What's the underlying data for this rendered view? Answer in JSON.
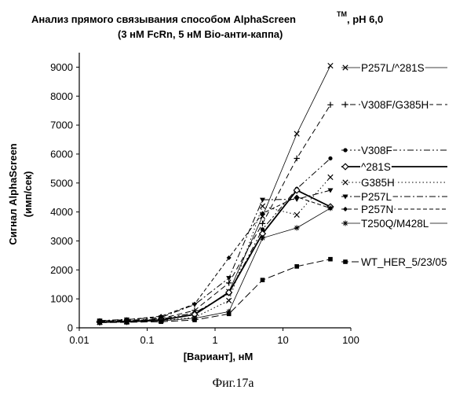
{
  "title": {
    "line1": "Анализ прямого связывания  способом  AlphaScreen",
    "tm": "TM",
    "line1_suffix": ", pH 6,0",
    "line2": "(3 нМ FcRn, 5 нМ Bio-анти-каппа)"
  },
  "figure_caption": "Фиг.17а",
  "chart_data": {
    "type": "line",
    "xlabel": "[Вариант], нМ",
    "ylabel_line1": "Сигнал AlphaScreen",
    "ylabel_line2": "(имп/сек)",
    "x_scale": "log",
    "xlim": [
      0.01,
      100
    ],
    "ylim": [
      0,
      9500
    ],
    "x_ticks": [
      0.01,
      0.1,
      1,
      10,
      100
    ],
    "x_tick_labels": [
      "0.01",
      "0.1",
      "1",
      "10",
      "100"
    ],
    "y_ticks": [
      0,
      1000,
      2000,
      3000,
      4000,
      5000,
      6000,
      7000,
      8000,
      9000
    ],
    "y_tick_labels": [
      "0",
      "1000",
      "2000",
      "3000",
      "4000",
      "5000",
      "6000",
      "7000",
      "8000",
      "9000"
    ],
    "grid": false,
    "legend_position": "right",
    "x": [
      0.02,
      0.05,
      0.16,
      0.5,
      1.6,
      5,
      16,
      50
    ],
    "series": [
      {
        "name": "P257L/^281S",
        "marker": "x",
        "line": "solid-thin",
        "values": [
          200,
          220,
          280,
          450,
          1250,
          3850,
          6700,
          9050
        ]
      },
      {
        "name": "V308F/G385H",
        "marker": "plus",
        "line": "dashed",
        "values": [
          230,
          260,
          320,
          600,
          1550,
          3600,
          5850,
          7700
        ]
      },
      {
        "name": "V308F",
        "marker": "dot",
        "line": "dashdotdot",
        "values": [
          210,
          240,
          300,
          520,
          1180,
          3400,
          4800,
          5850
        ]
      },
      {
        "name": "^281S",
        "marker": "diamond",
        "line": "solid-thick",
        "values": [
          200,
          220,
          270,
          460,
          1220,
          3250,
          4750,
          4180
        ]
      },
      {
        "name": "G385H",
        "marker": "x",
        "line": "dotted",
        "values": [
          190,
          210,
          250,
          360,
          940,
          4200,
          3900,
          5200
        ]
      },
      {
        "name": "P257L",
        "marker": "triangle",
        "line": "dashdot",
        "values": [
          250,
          290,
          360,
          800,
          1720,
          4420,
          4440,
          4750
        ]
      },
      {
        "name": "P257N",
        "marker": "diamond-small",
        "line": "dashed-short",
        "values": [
          240,
          280,
          400,
          820,
          2420,
          3950,
          4520,
          4130
        ]
      },
      {
        "name": "T250Q/M428L",
        "marker": "star",
        "line": "solid-thin",
        "values": [
          180,
          200,
          240,
          330,
          560,
          3100,
          3450,
          4130
        ]
      },
      {
        "name": "WT_HER_5/23/05",
        "marker": "square",
        "line": "dashed-long",
        "values": [
          180,
          190,
          210,
          270,
          480,
          1650,
          2120,
          2370
        ]
      }
    ]
  }
}
